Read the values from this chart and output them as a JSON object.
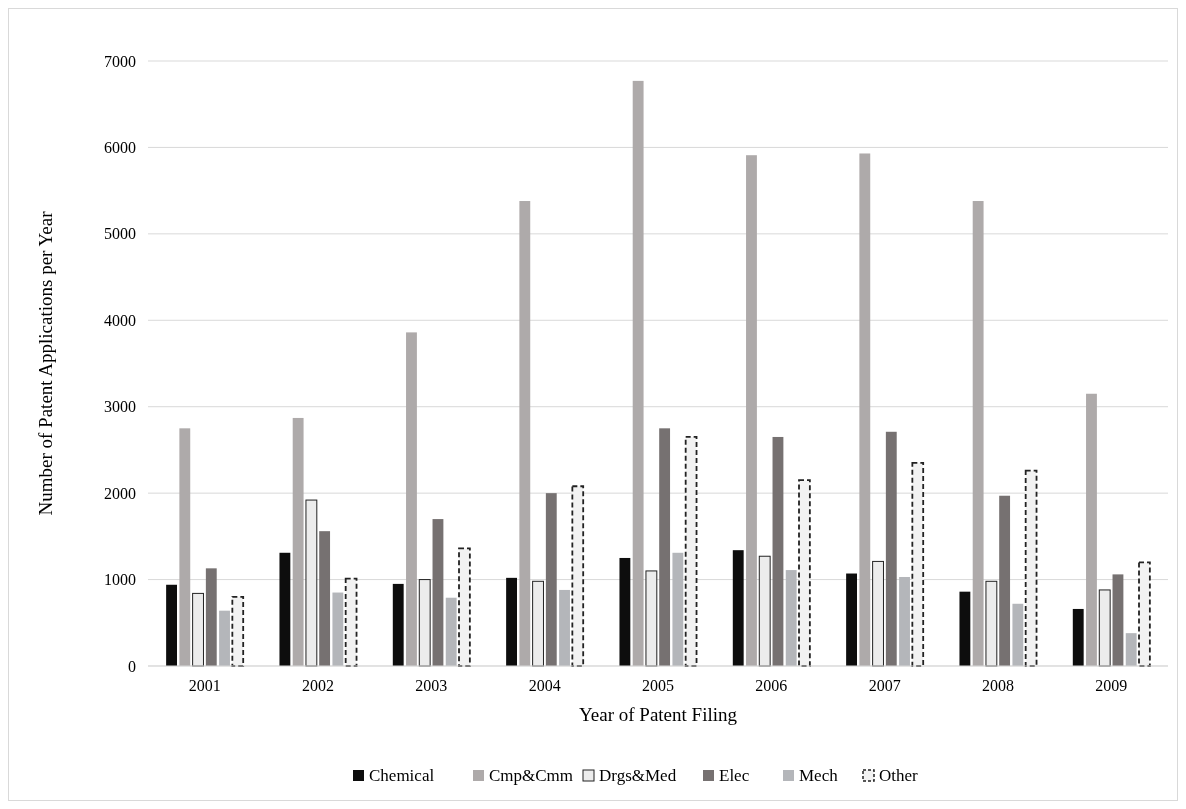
{
  "chart_data": {
    "type": "bar",
    "xlabel": "Year of Patent Filing",
    "ylabel": "Number of Patent Applications per Year",
    "categories": [
      "2001",
      "2002",
      "2003",
      "2004",
      "2005",
      "2006",
      "2007",
      "2008",
      "2009"
    ],
    "series": [
      {
        "name": "Chemical",
        "color": "#0d0d0d",
        "values": [
          940,
          1310,
          950,
          1020,
          1250,
          1340,
          1070,
          860,
          660
        ]
      },
      {
        "name": "Cmp&Cmm",
        "color": "#aeaaaa",
        "values": [
          2750,
          2870,
          3860,
          5380,
          6770,
          5910,
          5930,
          5380,
          3150
        ]
      },
      {
        "name": "Drgs&Med",
        "color": "#ececec",
        "values": [
          840,
          1920,
          1000,
          980,
          1100,
          1270,
          1210,
          980,
          880
        ]
      },
      {
        "name": "Elec",
        "color": "#767171",
        "values": [
          1130,
          1560,
          1700,
          2000,
          2750,
          2650,
          2710,
          1970,
          1060
        ]
      },
      {
        "name": "Mech",
        "color": "#b4b6ba",
        "values": [
          640,
          850,
          790,
          880,
          1310,
          1110,
          1030,
          720,
          380
        ]
      },
      {
        "name": "Other",
        "color": "#f2f2f2",
        "values": [
          800,
          1010,
          1360,
          2080,
          2650,
          2150,
          2350,
          2260,
          1200
        ]
      }
    ],
    "ylim": [
      0,
      7000
    ],
    "yticks": [
      0,
      1000,
      2000,
      3000,
      4000,
      5000,
      6000,
      7000
    ],
    "grid": "y",
    "legend": "bottom"
  }
}
